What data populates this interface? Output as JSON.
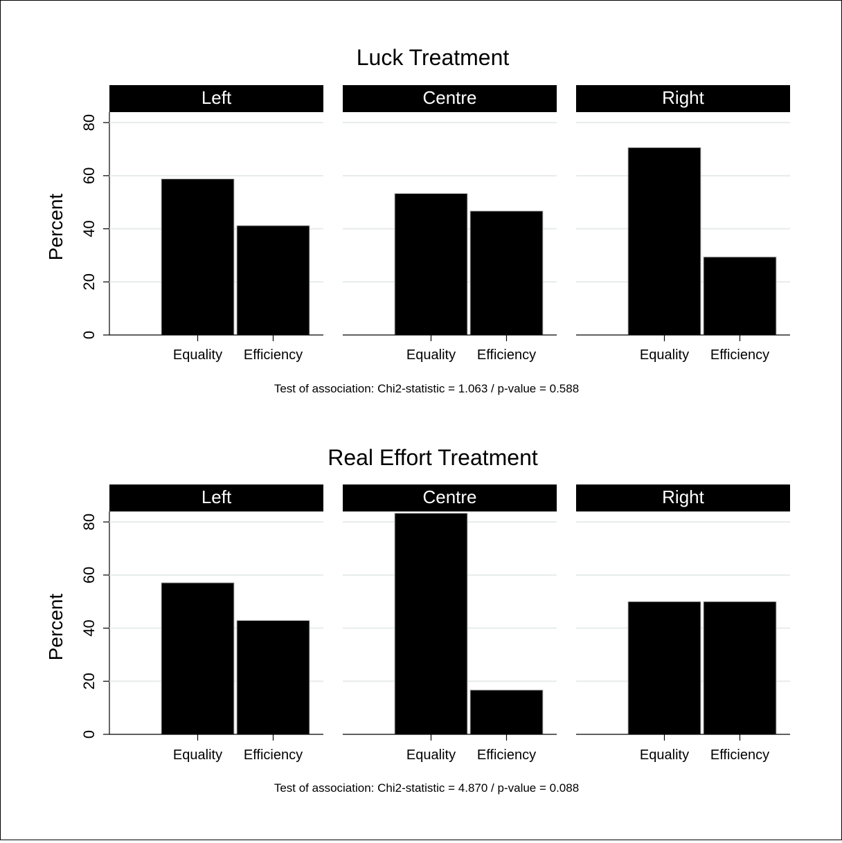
{
  "chart_data": [
    {
      "type": "bar",
      "title": "Luck Treatment",
      "ylabel": "Percent",
      "ylim": [
        0,
        90
      ],
      "yticks": [
        0,
        20,
        40,
        60,
        80
      ],
      "categories": [
        "Equality",
        "Efficiency"
      ],
      "panels": [
        {
          "name": "Left",
          "values": [
            58.8,
            41.2
          ]
        },
        {
          "name": "Centre",
          "values": [
            53.3,
            46.7
          ]
        },
        {
          "name": "Right",
          "values": [
            70.6,
            29.4
          ]
        }
      ],
      "note": "Test of association: Chi2-statistic = 1.063 / p-value = 0.588",
      "grid": true,
      "color": "#000000"
    },
    {
      "type": "bar",
      "title": "Real Effort Treatment",
      "ylabel": "Percent",
      "ylim": [
        0,
        90
      ],
      "yticks": [
        0,
        20,
        40,
        60,
        80
      ],
      "categories": [
        "Equality",
        "Efficiency"
      ],
      "panels": [
        {
          "name": "Left",
          "values": [
            57.1,
            42.9
          ]
        },
        {
          "name": "Centre",
          "values": [
            83.3,
            16.7
          ]
        },
        {
          "name": "Right",
          "values": [
            50.0,
            50.0
          ]
        }
      ],
      "note": "Test of association: Chi2-statistic = 4.870 / p-value = 0.088",
      "grid": true,
      "color": "#000000"
    }
  ]
}
